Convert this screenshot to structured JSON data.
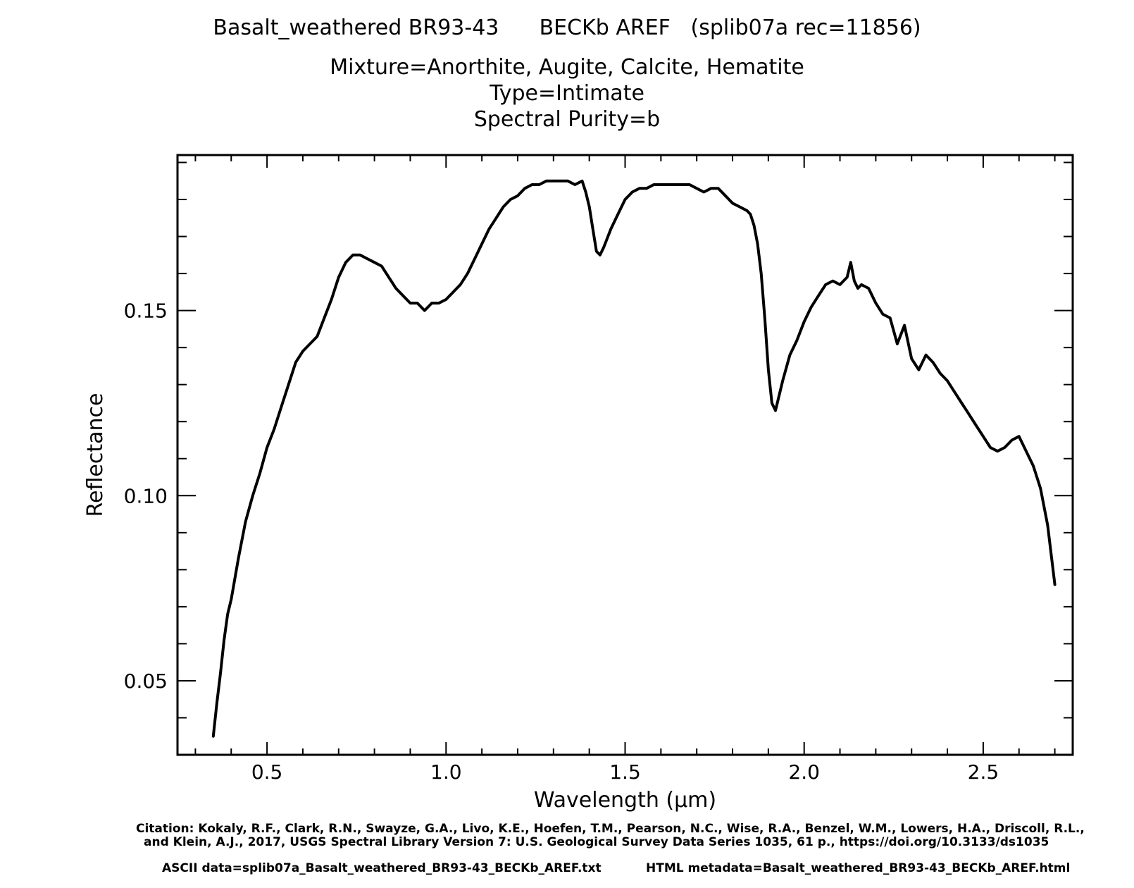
{
  "header": {
    "title_parts": [
      "Basalt_weathered BR93-43",
      "BECKb AREF",
      "(splib07a rec=11856)"
    ],
    "mixture": "Mixture=Anorthite, Augite, Calcite, Hematite",
    "type": "Type=Intimate",
    "purity": "Spectral Purity=b"
  },
  "footer": {
    "citation_line1": "Citation: Kokaly, R.F., Clark, R.N., Swayze, G.A., Livo, K.E., Hoefen, T.M., Pearson, N.C., Wise, R.A., Benzel, W.M., Lowers, H.A., Driscoll, R.L.,",
    "citation_line2": "and Klein, A.J., 2017, USGS Spectral Library Version 7: U.S. Geological Survey Data Series 1035, 61 p., https://doi.org/10.3133/ds1035",
    "ascii": "ASCII data=splib07a_Basalt_weathered_BR93-43_BECKb_AREF.txt",
    "html_meta": "HTML metadata=Basalt_weathered_BR93-43_BECKb_AREF.html"
  },
  "chart_data": {
    "type": "line",
    "xlabel": "Wavelength (μm)",
    "ylabel": "Reflectance",
    "xlim": [
      0.25,
      2.75
    ],
    "ylim": [
      0.03,
      0.192
    ],
    "x_ticks": [
      0.5,
      1.0,
      1.5,
      2.0,
      2.5
    ],
    "x_tick_labels": [
      "0.5",
      "1.0",
      "1.5",
      "2.0",
      "2.5"
    ],
    "y_ticks": [
      0.05,
      0.1,
      0.15
    ],
    "y_tick_labels": [
      "0.05",
      "0.10",
      "0.15"
    ],
    "grid": false,
    "line_color": "#000000",
    "series": [
      {
        "x": [
          0.35,
          0.36,
          0.37,
          0.38,
          0.39,
          0.4,
          0.42,
          0.44,
          0.46,
          0.48,
          0.5,
          0.52,
          0.54,
          0.56,
          0.58,
          0.6,
          0.62,
          0.64,
          0.66,
          0.68,
          0.7,
          0.72,
          0.74,
          0.76,
          0.78,
          0.8,
          0.82,
          0.84,
          0.86,
          0.88,
          0.9,
          0.92,
          0.94,
          0.95,
          0.96,
          0.98,
          1.0,
          1.02,
          1.04,
          1.06,
          1.08,
          1.1,
          1.12,
          1.14,
          1.16,
          1.18,
          1.2,
          1.22,
          1.24,
          1.26,
          1.28,
          1.3,
          1.32,
          1.34,
          1.36,
          1.38,
          1.39,
          1.4,
          1.41,
          1.42,
          1.43,
          1.44,
          1.46,
          1.48,
          1.5,
          1.52,
          1.54,
          1.56,
          1.58,
          1.6,
          1.62,
          1.64,
          1.66,
          1.68,
          1.7,
          1.72,
          1.74,
          1.76,
          1.78,
          1.8,
          1.82,
          1.84,
          1.85,
          1.86,
          1.87,
          1.88,
          1.89,
          1.9,
          1.91,
          1.92,
          1.94,
          1.96,
          1.98,
          2.0,
          2.02,
          2.04,
          2.06,
          2.08,
          2.1,
          2.12,
          2.13,
          2.14,
          2.15,
          2.16,
          2.18,
          2.2,
          2.22,
          2.24,
          2.26,
          2.28,
          2.3,
          2.32,
          2.34,
          2.36,
          2.38,
          2.4,
          2.42,
          2.44,
          2.46,
          2.48,
          2.5,
          2.52,
          2.54,
          2.56,
          2.58,
          2.6,
          2.62,
          2.64,
          2.66,
          2.68,
          2.7
        ],
        "y": [
          0.035,
          0.044,
          0.052,
          0.061,
          0.068,
          0.072,
          0.083,
          0.093,
          0.1,
          0.106,
          0.113,
          0.118,
          0.124,
          0.13,
          0.136,
          0.139,
          0.141,
          0.143,
          0.148,
          0.153,
          0.159,
          0.163,
          0.165,
          0.165,
          0.164,
          0.163,
          0.162,
          0.159,
          0.156,
          0.154,
          0.152,
          0.152,
          0.15,
          0.151,
          0.152,
          0.152,
          0.153,
          0.155,
          0.157,
          0.16,
          0.164,
          0.168,
          0.172,
          0.175,
          0.178,
          0.18,
          0.181,
          0.183,
          0.184,
          0.184,
          0.185,
          0.185,
          0.185,
          0.185,
          0.184,
          0.185,
          0.182,
          0.178,
          0.172,
          0.166,
          0.165,
          0.167,
          0.172,
          0.176,
          0.18,
          0.182,
          0.183,
          0.183,
          0.184,
          0.184,
          0.184,
          0.184,
          0.184,
          0.184,
          0.183,
          0.182,
          0.183,
          0.183,
          0.181,
          0.179,
          0.178,
          0.177,
          0.176,
          0.173,
          0.168,
          0.16,
          0.148,
          0.134,
          0.125,
          0.123,
          0.131,
          0.138,
          0.142,
          0.147,
          0.151,
          0.154,
          0.157,
          0.158,
          0.157,
          0.159,
          0.163,
          0.158,
          0.156,
          0.157,
          0.156,
          0.152,
          0.149,
          0.148,
          0.141,
          0.146,
          0.137,
          0.134,
          0.138,
          0.136,
          0.133,
          0.131,
          0.128,
          0.125,
          0.122,
          0.119,
          0.116,
          0.113,
          0.112,
          0.113,
          0.115,
          0.116,
          0.112,
          0.108,
          0.102,
          0.092,
          0.076
        ]
      }
    ]
  }
}
